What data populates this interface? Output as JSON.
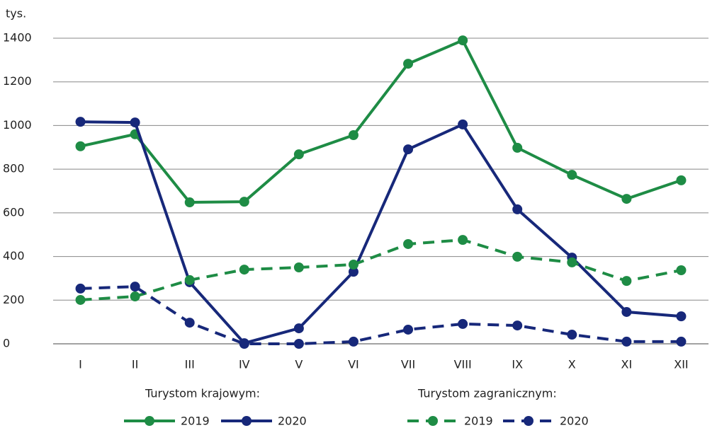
{
  "chart_data": {
    "type": "line",
    "y_label": "tys.",
    "categories": [
      "I",
      "II",
      "III",
      "IV",
      "V",
      "VI",
      "VII",
      "VIII",
      "IX",
      "X",
      "XI",
      "XII"
    ],
    "ylim": [
      0,
      1400
    ],
    "yticks": [
      0,
      200,
      400,
      600,
      800,
      1000,
      1200,
      1400
    ],
    "grid": true,
    "series_groups": [
      {
        "title": "Turystom krajowym:",
        "line_style": "solid",
        "series": [
          {
            "name": "2019",
            "color": "#1e8c45",
            "values": [
              905,
              960,
              648,
              651,
              868,
              956,
              1283,
              1390,
              898,
              774,
              664,
              749
            ]
          },
          {
            "name": "2020",
            "color": "#17287a",
            "values": [
              1017,
              1014,
              282,
              3,
              71,
              330,
              891,
              1005,
              616,
              395,
              146,
              126
            ]
          }
        ]
      },
      {
        "title": "Turystom zagranicznym:",
        "line_style": "dashed",
        "series": [
          {
            "name": "2019",
            "color": "#1e8c45",
            "values": [
              201,
              217,
              292,
              340,
              350,
              363,
              457,
              476,
              399,
              373,
              288,
              337
            ]
          },
          {
            "name": "2020",
            "color": "#17287a",
            "values": [
              253,
              262,
              97,
              0,
              0,
              10,
              65,
              91,
              84,
              42,
              10,
              10
            ]
          }
        ]
      }
    ]
  }
}
